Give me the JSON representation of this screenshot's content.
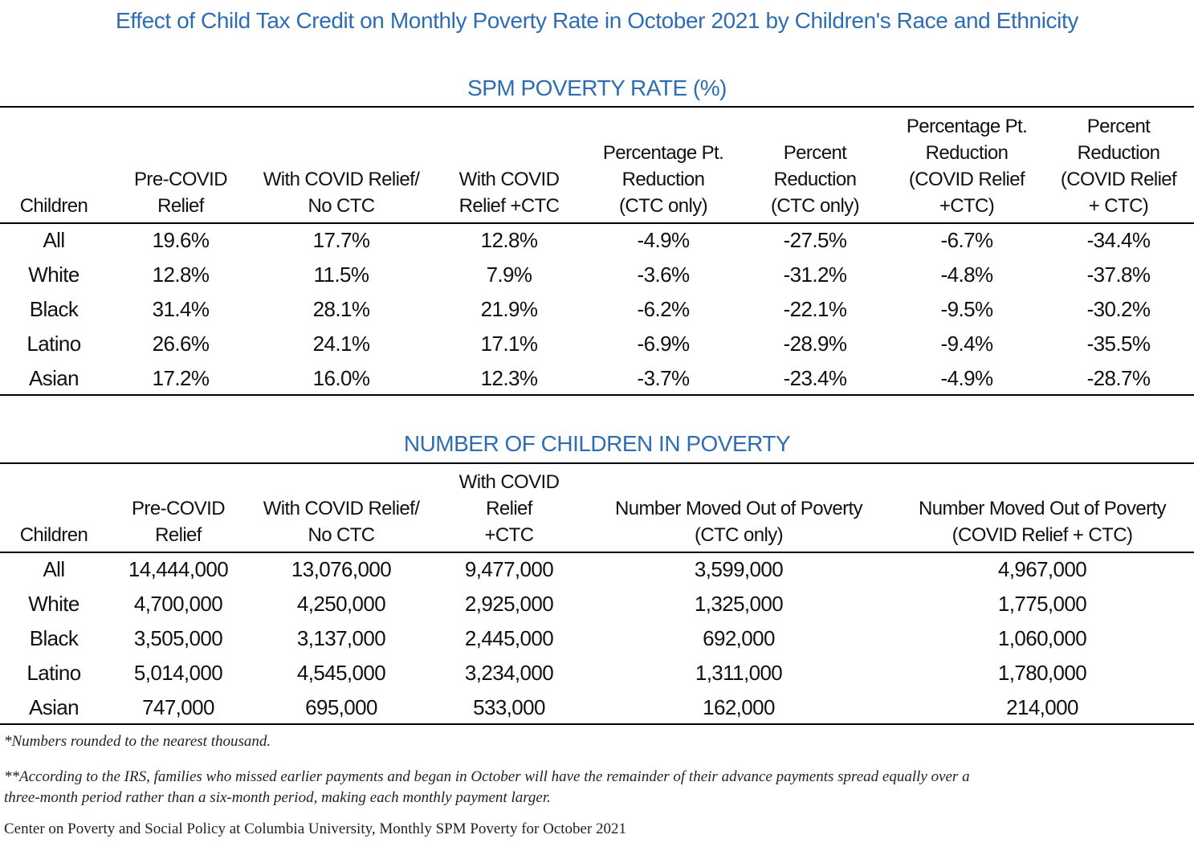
{
  "title": "Effect of Child Tax Credit on Monthly Poverty Rate in October 2021 by Children's Race and Ethnicity",
  "colors": {
    "accent": "#2e6db4",
    "text": "#111111"
  },
  "chart_data": [
    {
      "type": "table",
      "title": "SPM POVERTY RATE (%)",
      "columns": [
        "Children",
        "Pre-COVID\nRelief",
        "With COVID Relief/\nNo CTC",
        "With COVID\nRelief +CTC",
        "Percentage Pt.\nReduction\n(CTC only)",
        "Percent\nReduction\n(CTC only)",
        "Percentage Pt.\nReduction\n(COVID Relief\n+CTC)",
        "Percent\nReduction\n(COVID Relief\n+ CTC)"
      ],
      "rows": [
        [
          "All",
          "19.6%",
          "17.7%",
          "12.8%",
          "-4.9%",
          "-27.5%",
          "-6.7%",
          "-34.4%"
        ],
        [
          "White",
          "12.8%",
          "11.5%",
          "7.9%",
          "-3.6%",
          "-31.2%",
          "-4.8%",
          "-37.8%"
        ],
        [
          "Black",
          "31.4%",
          "28.1%",
          "21.9%",
          "-6.2%",
          "-22.1%",
          "-9.5%",
          "-30.2%"
        ],
        [
          "Latino",
          "26.6%",
          "24.1%",
          "17.1%",
          "-6.9%",
          "-28.9%",
          "-9.4%",
          "-35.5%"
        ],
        [
          "Asian",
          "17.2%",
          "16.0%",
          "12.3%",
          "-3.7%",
          "-23.4%",
          "-4.9%",
          "-28.7%"
        ]
      ]
    },
    {
      "type": "table",
      "title": "NUMBER OF CHILDREN IN POVERTY",
      "columns": [
        "Children",
        "Pre-COVID\nRelief",
        "With COVID Relief/\nNo CTC",
        "With COVID\nRelief\n+CTC",
        "Number Moved Out of Poverty\n(CTC only)",
        "Number Moved Out of Poverty\n(COVID Relief + CTC)"
      ],
      "rows": [
        [
          "All",
          "14,444,000",
          "13,076,000",
          "9,477,000",
          "3,599,000",
          "4,967,000"
        ],
        [
          "White",
          "4,700,000",
          "4,250,000",
          "2,925,000",
          "1,325,000",
          "1,775,000"
        ],
        [
          "Black",
          "3,505,000",
          "3,137,000",
          "2,445,000",
          "692,000",
          "1,060,000"
        ],
        [
          "Latino",
          "5,014,000",
          "4,545,000",
          "3,234,000",
          "1,311,000",
          "1,780,000"
        ],
        [
          "Asian",
          "747,000",
          "695,000",
          "533,000",
          "162,000",
          "214,000"
        ]
      ]
    }
  ],
  "footnotes": {
    "note1": "*Numbers rounded to the nearest thousand.",
    "note2_line1": "**According to the IRS, families who missed earlier payments and began in October will have the remainder of their advance payments spread equally over a",
    "note2_line2": "three-month period rather than a six-month period, making each monthly payment larger.",
    "source": "Center on Poverty and Social Policy at Columbia University, Monthly SPM Poverty for October 2021"
  }
}
